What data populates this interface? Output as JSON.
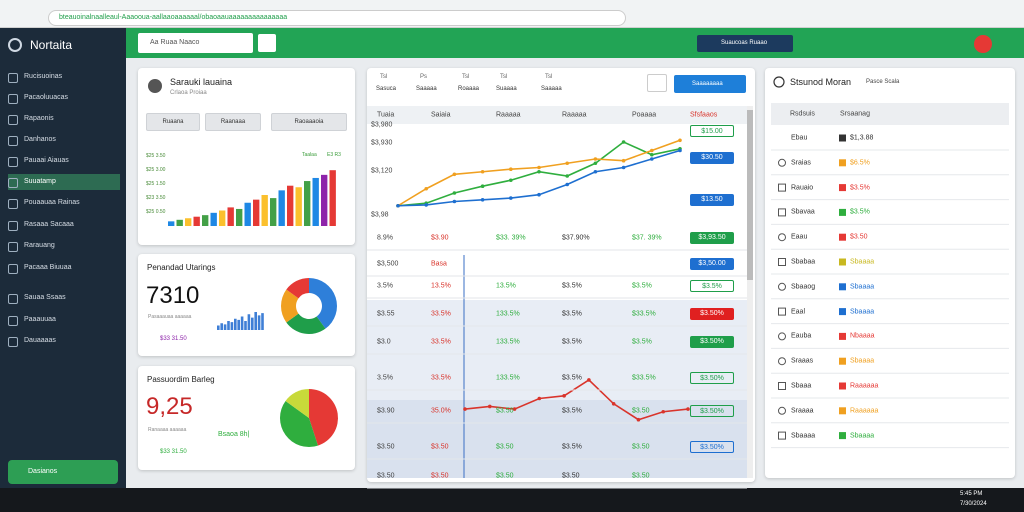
{
  "browser": {
    "address": "bteauoinalnaalleaul-Aaaooua-aallaaoaaaaaal/obaoaauaaaaaaaaaaaaaaa"
  },
  "sidebar": {
    "brand": "Nortaita",
    "items": [
      "Rucisuoinas",
      "Pacaoluuacas",
      "Rapaonis",
      "Danhanos",
      "Pauaai Aiauas",
      "Suuatamp",
      "Pouaauaa Rainas",
      "Rasaaa Sacaaa",
      "Rarauang",
      "Pacaaa Biuuaa",
      "Sauaa Ssaas",
      "Paaauuaa",
      "Dauaaaas"
    ],
    "active": 5,
    "footer_button": "Dasianos"
  },
  "header": {
    "search": "Aa Ruaa Naaco",
    "account": "Suaucoas  Ruaao"
  },
  "card_sales": {
    "title": "Sarauki lauaina",
    "subtitle": "Crlaoa Proiaa",
    "buttons": [
      "Ruaana",
      "Raanaaa",
      "Raoaaaoia"
    ],
    "axis_labels": [
      "$25 3.50",
      "$25 3.00",
      "$25 1.50",
      "$23 3.50",
      "$25 0.50"
    ],
    "legend": [
      "Taalaa",
      "E3 R3"
    ],
    "values": [
      6,
      8,
      10,
      12,
      14,
      17,
      20,
      24,
      22,
      30,
      34,
      40,
      36,
      46,
      52,
      50,
      58,
      62,
      66,
      72
    ],
    "colors": [
      "#1e88e5",
      "#43a047",
      "#fbc02d",
      "#e53935",
      "#43a047",
      "#1e88e5",
      "#fbc02d",
      "#e53935",
      "#43a047",
      "#1e88e5",
      "#e53935",
      "#fbc02d",
      "#43a047",
      "#1e88e5",
      "#e53935",
      "#fbc02d",
      "#43a047",
      "#1e88e5",
      "#8e24aa",
      "#e53935"
    ],
    "ylim": [
      0,
      80
    ]
  },
  "card_visits": {
    "title": "Penandad Utarings",
    "value": "7310",
    "caption": "Pasaaauaa aaaaaa",
    "footer": "$33 31.50",
    "bars": [
      4,
      6,
      5,
      8,
      7,
      10,
      9,
      12,
      8,
      14,
      11,
      16,
      13,
      15
    ],
    "bar_color": "#3f7fd6",
    "bar_ylim": [
      0,
      16
    ],
    "donut": [
      40,
      25,
      20,
      15
    ],
    "donut_colors": [
      "#2e7fd9",
      "#1f9e4a",
      "#f0a020",
      "#e53935"
    ]
  },
  "card_rate": {
    "title": "Passuordim Barleg",
    "value": "9,25",
    "caption": "Ranaaaa aaaaaa",
    "footer": "$33 31.50",
    "badge": "Bsaoa 8h|",
    "pie": [
      45,
      40,
      15
    ],
    "pie_colors": [
      "#e53935",
      "#2fae3e",
      "#c8d93a"
    ]
  },
  "table": {
    "tabs": [
      {
        "icon": "Tsl",
        "label": "Sasuca"
      },
      {
        "icon": "Ps",
        "label": "Saaaaa"
      },
      {
        "icon": "Tsl",
        "label": "Roaaaa"
      },
      {
        "icon": "Tsl",
        "label": "Suaaaa"
      },
      {
        "icon": "Tsl",
        "label": "Saaaaa"
      }
    ],
    "button": "Saaaaaaaa",
    "columns": [
      "Tuaia",
      "Saiaia",
      "Raaaaa",
      "Raaaaa",
      "Poaaaa",
      "Sfsfaaos"
    ],
    "chart_labels": [
      "$3,980",
      "$3,930",
      "$3,120",
      "$3,98"
    ],
    "chart_badges": [
      {
        "text": "$15.00",
        "color": "#1f9e4a",
        "style": "outline"
      },
      {
        "text": "$30.50",
        "color": "#1e6fd0",
        "style": "fill"
      },
      {
        "text": "$13.50",
        "color": "#1e6fd0",
        "style": "fill"
      }
    ],
    "line_chart": {
      "type": "line",
      "ylim": [
        0,
        100
      ],
      "series": [
        {
          "color": "#2fae3e",
          "values": [
            5,
            8,
            20,
            28,
            35,
            45,
            40,
            55,
            80,
            65,
            72
          ]
        },
        {
          "color": "#f0a020",
          "values": [
            5,
            25,
            42,
            45,
            48,
            50,
            55,
            60,
            58,
            70,
            82
          ]
        },
        {
          "color": "#1e6fd0",
          "values": [
            5,
            6,
            10,
            12,
            14,
            18,
            30,
            45,
            50,
            60,
            70
          ]
        }
      ]
    },
    "red_chart": {
      "type": "line",
      "ylim": [
        0,
        100
      ],
      "series": [
        {
          "color": "#d9342b",
          "values": [
            30,
            35,
            30,
            50,
            55,
            85,
            40,
            10,
            25,
            30
          ]
        }
      ]
    },
    "rows": [
      {
        "cells": [
          "8.9%",
          "$3.90",
          "$33. 39%",
          "$37.90%",
          "$37. 39%"
        ],
        "badge": {
          "text": "$3,93.50",
          "color": "#1f9e4a",
          "style": "fill"
        }
      },
      {
        "cells": [
          "$3,500",
          "Basa"
        ],
        "badge": {
          "text": "$3,50.00",
          "color": "#1e6fd0",
          "style": "fill"
        }
      },
      {
        "cells": [
          "3.5%",
          "13.5%",
          "13.5%",
          "$3.5%",
          "$3.5%"
        ],
        "badge": {
          "text": "$3.5%",
          "color": "#1f9e4a",
          "style": "outline"
        }
      },
      {
        "cells": [
          "$3.55",
          "33.5%",
          "133.5%",
          "$3.5%",
          "$33.5%"
        ],
        "badge": {
          "text": "$3.50%",
          "color": "#e02020",
          "style": "fill"
        }
      },
      {
        "cells": [
          "$3.0",
          "33.5%",
          "133.5%",
          "$3.5%",
          "$3.5%"
        ],
        "badge": {
          "text": "$3.50%",
          "color": "#1f9e4a",
          "style": "fill"
        }
      },
      {
        "cells": [
          "3.5%",
          "33.5%",
          "133.5%",
          "$3.5%",
          "$33.5%"
        ],
        "badge": {
          "text": "$3.50%",
          "color": "#1f9e4a",
          "style": "outline"
        }
      },
      {
        "cells": [
          "$3.90",
          "35.0%",
          "$3.50",
          "$3.5%",
          "$3.50"
        ],
        "badge": {
          "text": "$3.50%",
          "color": "#1f9e4a",
          "style": "outline"
        }
      },
      {
        "cells": [
          "$3.50",
          "$3.50",
          "$3.50",
          "$3.5%",
          "$3.50"
        ],
        "badge": {
          "text": "$3.50%",
          "color": "#1e6fd0",
          "style": "outline"
        }
      },
      {
        "cells": [
          "$3.50",
          "$3.50",
          "$3.50",
          "$3.50",
          "$3.50"
        ]
      }
    ]
  },
  "list": {
    "title": "Stsunod Moran",
    "subtitle": "Pasce Scala",
    "columns": [
      "Rsdsuis",
      "Srsaanag"
    ],
    "rows": [
      {
        "icon": "none",
        "name": "Ebau",
        "value": "$1,3.88",
        "color": "#333"
      },
      {
        "icon": "ring",
        "name": "Sraias",
        "value": "$6.5%",
        "color": "#f0a020"
      },
      {
        "icon": "square",
        "name": "Rauaio",
        "value": "$3.5%",
        "color": "#e53935"
      },
      {
        "icon": "square",
        "name": "Sbavaa",
        "value": "$3.5%",
        "color": "#2fae3e"
      },
      {
        "icon": "ring",
        "name": "Eaau",
        "value": "$3.50",
        "color": "#e53935"
      },
      {
        "icon": "square",
        "name": "Sbabaa",
        "value": "Sbaaaa",
        "color": "#c8b820"
      },
      {
        "icon": "ring",
        "name": "Sbaaog",
        "value": "Sbaaaa",
        "color": "#1e6fd0"
      },
      {
        "icon": "square",
        "name": "Eaal",
        "value": "Sbaaaa",
        "color": "#1e6fd0"
      },
      {
        "icon": "ring",
        "name": "Eauba",
        "value": "Nbaaaa",
        "color": "#e53935"
      },
      {
        "icon": "ring",
        "name": "Sraaas",
        "value": "Sbaaaa",
        "color": "#f0a020"
      },
      {
        "icon": "square",
        "name": "Sbaaa",
        "value": "Raaaaaa",
        "color": "#e53935"
      },
      {
        "icon": "ring",
        "name": "Sraaaa",
        "value": "Raaaaaa",
        "color": "#f0a020"
      },
      {
        "icon": "square",
        "name": "Sbaaaa",
        "value": "Sbaaaa",
        "color": "#2fae3e"
      }
    ]
  },
  "taskbar": {
    "time": "5:45 PM",
    "date": "7/30/2024"
  }
}
